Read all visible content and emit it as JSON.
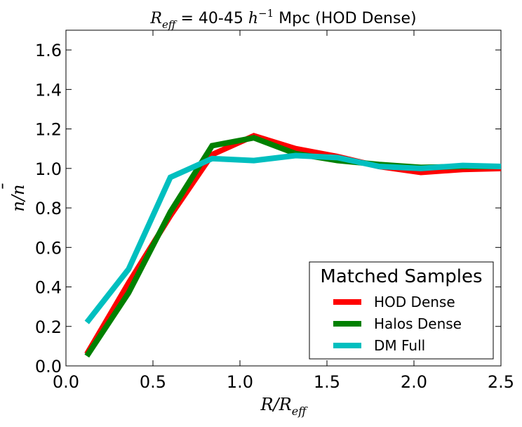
{
  "chart_data": {
    "type": "line",
    "title": "R_eff = 40-45 h^-1 Mpc (HOD Dense)",
    "title_parts": {
      "r_main": "R",
      "r_sub": "eff",
      "middle": " = 40-45 ",
      "h": "h",
      "h_sup": "−1",
      "suffix": " Mpc (HOD Dense)"
    },
    "xlabel": "R/R_eff",
    "xlabel_parts": {
      "main": "R/R",
      "sub": "eff"
    },
    "ylabel": "n/n̄",
    "ylabel_parts": {
      "n1": "n/",
      "nbar": "n",
      "bar": "¯"
    },
    "xlim": [
      0.0,
      2.5
    ],
    "ylim": [
      0.0,
      1.7
    ],
    "xticks": [
      "0.0",
      "0.5",
      "1.0",
      "1.5",
      "2.0",
      "2.5"
    ],
    "yticks": [
      "0.0",
      "0.2",
      "0.4",
      "0.6",
      "0.8",
      "1.0",
      "1.2",
      "1.4",
      "1.6"
    ],
    "legend": {
      "title": "Matched Samples",
      "position": "lower right"
    },
    "series": [
      {
        "name": "HOD Dense",
        "color": "#ff0000",
        "x": [
          0.12,
          0.36,
          0.6,
          0.84,
          1.08,
          1.32,
          1.56,
          1.8,
          2.04,
          2.28,
          2.5
        ],
        "y": [
          0.06,
          0.42,
          0.76,
          1.07,
          1.165,
          1.1,
          1.06,
          1.01,
          0.98,
          0.995,
          1.0
        ]
      },
      {
        "name": "Halos Dense",
        "color": "#008000",
        "x": [
          0.12,
          0.36,
          0.6,
          0.84,
          1.08,
          1.32,
          1.56,
          1.8,
          2.04,
          2.28,
          2.5
        ],
        "y": [
          0.05,
          0.37,
          0.78,
          1.115,
          1.155,
          1.075,
          1.04,
          1.02,
          1.005,
          1.01,
          1.01
        ]
      },
      {
        "name": "DM Full",
        "color": "#00bfbf",
        "x": [
          0.12,
          0.36,
          0.6,
          0.84,
          1.08,
          1.32,
          1.56,
          1.8,
          2.04,
          2.28,
          2.5
        ],
        "y": [
          0.22,
          0.49,
          0.955,
          1.05,
          1.04,
          1.065,
          1.055,
          1.01,
          1.0,
          1.015,
          1.01
        ]
      }
    ]
  }
}
